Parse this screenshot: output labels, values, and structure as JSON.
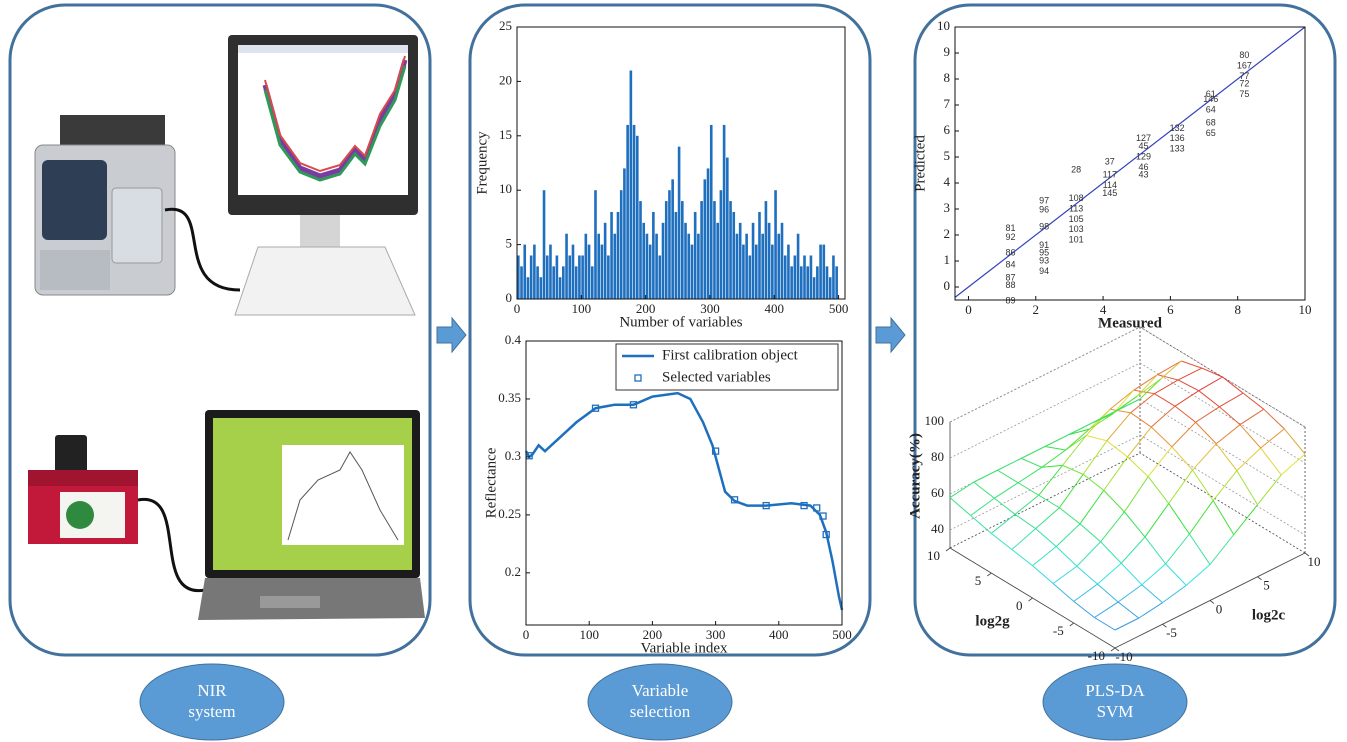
{
  "steps": [
    [
      "NIR",
      "system"
    ],
    [
      "Variable",
      "selection"
    ],
    [
      "PLS-DA",
      "SVM"
    ]
  ],
  "chart_data": [
    {
      "type": "bar",
      "xlabel": "Number of variables",
      "ylabel": "Frequency",
      "color": "#1f6fbf",
      "x": [
        0,
        5,
        10,
        15,
        20,
        25,
        30,
        35,
        40,
        45,
        50,
        55,
        60,
        65,
        70,
        75,
        80,
        85,
        90,
        95,
        100,
        105,
        110,
        115,
        120,
        125,
        130,
        135,
        140,
        145,
        150,
        155,
        160,
        165,
        170,
        175,
        180,
        185,
        190,
        195,
        200,
        205,
        210,
        215,
        220,
        225,
        230,
        235,
        240,
        245,
        250,
        255,
        260,
        265,
        270,
        275,
        280,
        285,
        290,
        295,
        300,
        305,
        310,
        315,
        320,
        325,
        330,
        335,
        340,
        345,
        350,
        355,
        360,
        365,
        370,
        375,
        380,
        385,
        390,
        395,
        400,
        405,
        410,
        415,
        420,
        425,
        430,
        435,
        440,
        445,
        450,
        455,
        460,
        465,
        470,
        475,
        480,
        485,
        490,
        495
      ],
      "values": [
        4,
        3,
        5,
        2,
        4,
        5,
        3,
        2,
        10,
        4,
        5,
        3,
        4,
        2,
        3,
        6,
        4,
        5,
        3,
        4,
        4,
        6,
        5,
        3,
        10,
        6,
        5,
        7,
        4,
        8,
        6,
        8,
        10,
        12,
        16,
        21,
        16,
        15,
        9,
        7,
        6,
        5,
        8,
        6,
        4,
        7,
        9,
        10,
        11,
        8,
        14,
        9,
        7,
        6,
        5,
        8,
        6,
        9,
        11,
        12,
        16,
        9,
        7,
        10,
        16,
        13,
        9,
        8,
        6,
        7,
        5,
        6,
        4,
        7,
        5,
        8,
        6,
        9,
        7,
        5,
        10,
        6,
        7,
        4,
        5,
        3,
        4,
        6,
        3,
        4,
        3,
        4,
        2,
        3,
        5,
        5,
        3,
        2,
        4,
        3
      ],
      "xlim": [
        0,
        510
      ],
      "ylim": [
        0,
        25
      ],
      "xticks": [
        0,
        100,
        200,
        300,
        400,
        500
      ],
      "yticks": [
        0,
        5,
        10,
        15,
        20,
        25
      ]
    },
    {
      "type": "line",
      "xlabel": "Variable index",
      "ylabel": "Reflectance",
      "legend": "upper right",
      "series": [
        {
          "name": "First calibration object",
          "color": "#1f6fbf",
          "x": [
            0,
            5,
            10,
            20,
            30,
            50,
            80,
            110,
            140,
            170,
            200,
            240,
            260,
            280,
            295,
            305,
            315,
            330,
            350,
            380,
            420,
            450,
            465,
            475,
            485,
            495,
            500
          ],
          "values": [
            0.305,
            0.3,
            0.302,
            0.31,
            0.305,
            0.315,
            0.33,
            0.342,
            0.345,
            0.345,
            0.352,
            0.355,
            0.35,
            0.33,
            0.31,
            0.29,
            0.27,
            0.262,
            0.258,
            0.258,
            0.26,
            0.258,
            0.25,
            0.235,
            0.21,
            0.18,
            0.168
          ]
        },
        {
          "name": "Selected variables",
          "color": "#1f6fbf",
          "marker": "square",
          "x": [
            5,
            110,
            170,
            300,
            330,
            380,
            440,
            460,
            470,
            475
          ],
          "values": [
            0.301,
            0.342,
            0.345,
            0.305,
            0.263,
            0.258,
            0.258,
            0.256,
            0.249,
            0.233
          ]
        }
      ],
      "xlim": [
        0,
        500
      ],
      "ylim": [
        0.155,
        0.4
      ],
      "xticks": [
        0,
        100,
        200,
        300,
        400,
        500
      ],
      "yticks": [
        0.2,
        0.25,
        0.3,
        0.35,
        0.4
      ]
    },
    {
      "type": "scatter",
      "xlabel": "Measured",
      "ylabel": "Predicted",
      "color": "#3040c0",
      "x": [
        1.25,
        1.25,
        1.25,
        1.25,
        1.25,
        1.25,
        1.25,
        2.25,
        2.25,
        2.25,
        2.25,
        2.25,
        2.25,
        2.25,
        3.2,
        3.2,
        3.2,
        3.2,
        3.2,
        3.2,
        4.2,
        4.2,
        4.2,
        4.2,
        5.2,
        5.2,
        5.2,
        5.2,
        5.2,
        6.2,
        6.2,
        6.2,
        7.2,
        7.2,
        7.2,
        7.2,
        7.2,
        8.2,
        8.2,
        8.2,
        8.2,
        8.2
      ],
      "values": [
        2.25,
        1.9,
        1.3,
        0.85,
        0.35,
        0.05,
        -0.55,
        3.3,
        2.95,
        2.3,
        1.6,
        1.3,
        1.0,
        0.6,
        4.5,
        3.4,
        3.0,
        2.6,
        2.2,
        1.8,
        4.8,
        4.3,
        3.9,
        3.6,
        5.7,
        5.4,
        5.0,
        4.6,
        4.3,
        6.1,
        5.7,
        5.3,
        7.4,
        7.2,
        6.8,
        6.3,
        5.9,
        8.9,
        8.5,
        8.1,
        7.8,
        7.4
      ],
      "point_labels": [
        "81",
        "92",
        "86",
        "84",
        "87",
        "88",
        "89",
        "97",
        "96",
        "98",
        "91",
        "95",
        "93",
        "94",
        "28",
        "108",
        "113",
        "105",
        "103",
        "101",
        "37",
        "117",
        "114",
        "145",
        "127",
        "45",
        "129",
        "46",
        "43",
        "132",
        "136",
        "133",
        "61",
        "146",
        "64",
        "68",
        "65",
        "80",
        "167",
        "77",
        "72",
        "75"
      ],
      "xlim": [
        -0.4,
        10
      ],
      "ylim": [
        -0.5,
        10
      ],
      "xticks": [
        0,
        2,
        4,
        6,
        8,
        10
      ],
      "yticks": [
        0,
        1,
        2,
        3,
        4,
        5,
        6,
        7,
        8,
        9,
        10
      ]
    },
    {
      "type": "surface",
      "xlabel": "log2c",
      "ylabel": "log2g",
      "zlabel": "Accuracy(%)",
      "x": [
        -10,
        -7.5,
        -5,
        -2.5,
        0,
        2.5,
        5,
        7.5,
        10
      ],
      "y": [
        -10,
        -7.5,
        -5,
        -2.5,
        0,
        2.5,
        5,
        7.5,
        10
      ],
      "z": [
        [
          40,
          40,
          42,
          45,
          50,
          60,
          70,
          80,
          85
        ],
        [
          40,
          42,
          45,
          50,
          60,
          72,
          82,
          88,
          92
        ],
        [
          42,
          45,
          50,
          58,
          70,
          82,
          90,
          94,
          96
        ],
        [
          45,
          48,
          55,
          65,
          78,
          88,
          95,
          97,
          98
        ],
        [
          48,
          52,
          58,
          70,
          82,
          92,
          97,
          99,
          100
        ],
        [
          50,
          55,
          60,
          72,
          84,
          93,
          97,
          98,
          98
        ],
        [
          52,
          56,
          60,
          70,
          80,
          88,
          92,
          94,
          95
        ],
        [
          55,
          58,
          60,
          62,
          65,
          70,
          72,
          75,
          78
        ],
        [
          58,
          60,
          60,
          60,
          60,
          60,
          60,
          60,
          60
        ]
      ],
      "xlim": [
        -10,
        10
      ],
      "ylim": [
        -10,
        10
      ],
      "zlim": [
        30,
        100
      ],
      "xticks": [
        -10,
        -5,
        0,
        5,
        10
      ],
      "yticks": [
        -10,
        -5,
        0,
        5,
        10
      ],
      "zticks": [
        40,
        60,
        80,
        100
      ]
    }
  ]
}
